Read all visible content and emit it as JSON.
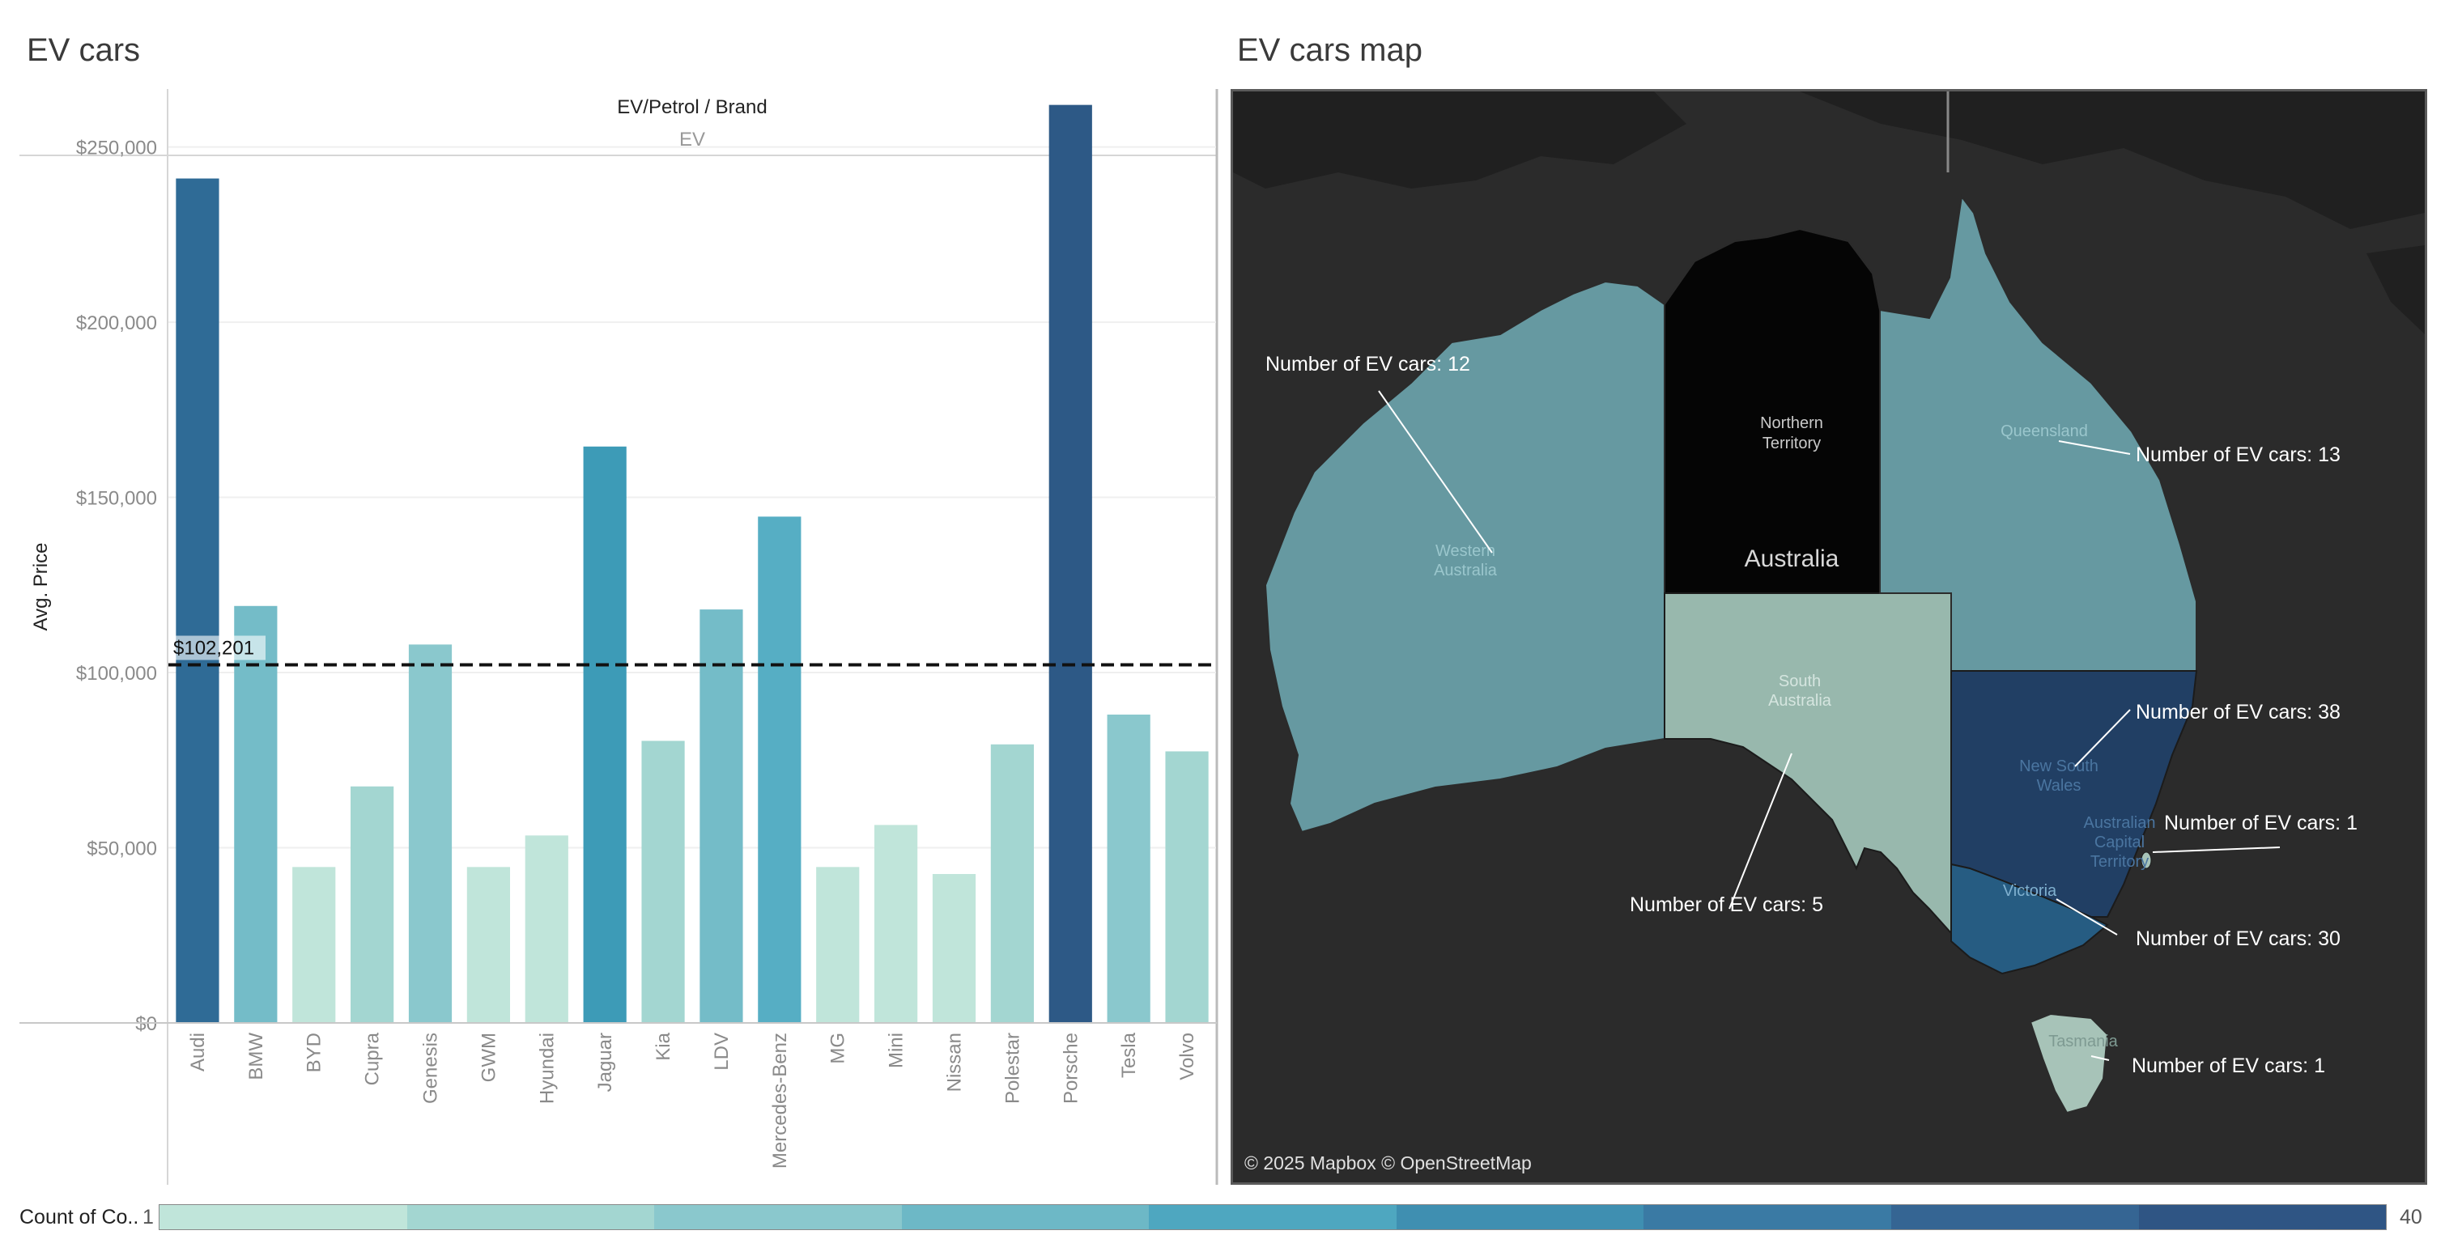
{
  "left_sheet": {
    "title": "EV cars"
  },
  "right_sheet": {
    "title": "EV cars map"
  },
  "chart_data": {
    "type": "bar",
    "title": "EV cars",
    "column_header": "EV/Petrol / Brand",
    "column_subheader": "EV",
    "ylabel": "Avg. Price",
    "ylim": [
      0,
      270000
    ],
    "yticks": [
      {
        "value": 0,
        "label": "$0"
      },
      {
        "value": 50000,
        "label": "$50,000"
      },
      {
        "value": 100000,
        "label": "$100,000"
      },
      {
        "value": 150000,
        "label": "$150,000"
      },
      {
        "value": 200000,
        "label": "$200,000"
      },
      {
        "value": 250000,
        "label": "$250,000"
      }
    ],
    "categories": [
      "Audi",
      "BMW",
      "BYD",
      "Cupra",
      "Genesis",
      "GWM",
      "Hyundai",
      "Jaguar",
      "Kia",
      "LDV",
      "Mercedes-Benz",
      "MG",
      "Mini",
      "Nissan",
      "Polestar",
      "Porsche",
      "Tesla",
      "Volvo"
    ],
    "values": [
      241000,
      119000,
      44500,
      67500,
      108000,
      44500,
      53500,
      164500,
      80500,
      118000,
      144500,
      44500,
      56500,
      42500,
      79500,
      262000,
      88000,
      77500
    ],
    "colors": [
      "#2f6b96",
      "#74bcc8",
      "#c0e5da",
      "#a3d6d1",
      "#8ac8cd",
      "#c0e5da",
      "#c0e5da",
      "#3d9bb7",
      "#a3d6d1",
      "#74bcc8",
      "#56aec4",
      "#c0e5da",
      "#c0e5da",
      "#c0e5da",
      "#a3d6d1",
      "#2d5986",
      "#8ac8cd",
      "#a3d6d1"
    ],
    "reference_line": {
      "value": 102201,
      "label": "$102,201",
      "style": "dashed"
    },
    "grid": true
  },
  "map": {
    "center_label": "Australia",
    "credit": "© 2025 Mapbox © OpenStreetMap",
    "states": [
      {
        "name": "Western Australia",
        "count": 12,
        "annotation": "Number of  EV cars: 12",
        "color": "#6699a1"
      },
      {
        "name": "Northern Territory",
        "count": 0,
        "annotation": "",
        "color": "#050505"
      },
      {
        "name": "South Australia",
        "count": 5,
        "annotation": "Number of  EV cars: 5",
        "color": "#98b8ad"
      },
      {
        "name": "Queensland",
        "count": 13,
        "annotation": "Number of  EV cars: 13",
        "color": "#6699a1"
      },
      {
        "name": "New South Wales",
        "count": 38,
        "annotation": "Number of  EV cars: 38",
        "color": "#213f64"
      },
      {
        "name": "Australian Capital Territory",
        "count": 1,
        "annotation": "Number of  EV cars: 1",
        "color": "#a7c3b8"
      },
      {
        "name": "Victoria",
        "count": 30,
        "annotation": "Number of  EV cars: 30",
        "color": "#265c82"
      },
      {
        "name": "Tasmania",
        "count": 1,
        "annotation": "Number of  EV cars: 1",
        "color": "#a7c3b8"
      }
    ]
  },
  "legend": {
    "label": "Count of Co..",
    "min": "1",
    "max": "40",
    "colors": [
      "#c0e5da",
      "#a3d6d1",
      "#8ac8cd",
      "#6db8c6",
      "#4ea7c0",
      "#3f8fb1",
      "#3a7aa4",
      "#356593",
      "#2f5584"
    ]
  }
}
